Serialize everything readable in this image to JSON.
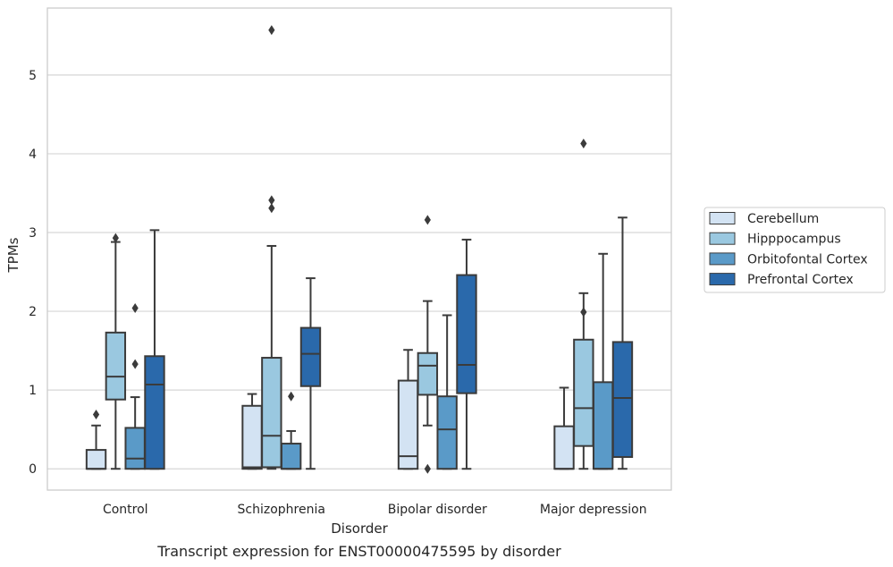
{
  "chart_data": {
    "type": "box",
    "caption": "Transcript expression for ENST00000475595 by disorder",
    "xlabel": "Disorder",
    "ylabel": "TPMs",
    "categories": [
      "Control",
      "Schizophrenia",
      "Bipolar disorder",
      "Major depression"
    ],
    "ylim": [
      -0.27,
      5.85
    ],
    "yticks": [
      0,
      1,
      2,
      3,
      4,
      5
    ],
    "grid": "horizontal",
    "legend_position": "right",
    "series": [
      {
        "name": "Cerebellum",
        "color": "#d3e3f3",
        "boxes": [
          {
            "whisker_low": 0,
            "q1": 0,
            "median": 0,
            "q3": 0.24,
            "whisker_high": 0.55,
            "outliers": [
              0.69
            ]
          },
          {
            "whisker_low": 0,
            "q1": 0,
            "median": 0.02,
            "q3": 0.8,
            "whisker_high": 0.95,
            "outliers": []
          },
          {
            "whisker_low": 0,
            "q1": 0,
            "median": 0.16,
            "q3": 1.12,
            "whisker_high": 1.51,
            "outliers": []
          },
          {
            "whisker_low": 0,
            "q1": 0,
            "median": 0,
            "q3": 0.54,
            "whisker_high": 1.03,
            "outliers": []
          }
        ]
      },
      {
        "name": "Hipppocampus",
        "color": "#9ac8e0",
        "boxes": [
          {
            "whisker_low": 0,
            "q1": 0.88,
            "median": 1.17,
            "q3": 1.73,
            "whisker_high": 2.88,
            "outliers": [
              2.93
            ]
          },
          {
            "whisker_low": 0,
            "q1": 0.02,
            "median": 0.42,
            "q3": 1.41,
            "whisker_high": 2.83,
            "outliers": [
              3.31,
              3.41,
              5.57
            ]
          },
          {
            "whisker_low": 0.55,
            "q1": 0.94,
            "median": 1.31,
            "q3": 1.47,
            "whisker_high": 2.13,
            "outliers": [
              0,
              3.16
            ]
          },
          {
            "whisker_low": 0,
            "q1": 0.29,
            "median": 0.77,
            "q3": 1.64,
            "whisker_high": 2.23,
            "outliers": [
              1.99,
              4.13
            ]
          }
        ]
      },
      {
        "name": "Orbitofontal Cortex",
        "color": "#5a9ac8",
        "boxes": [
          {
            "whisker_low": 0,
            "q1": 0,
            "median": 0.13,
            "q3": 0.52,
            "whisker_high": 0.91,
            "outliers": [
              1.33,
              2.04
            ]
          },
          {
            "whisker_low": 0,
            "q1": 0,
            "median": 0,
            "q3": 0.32,
            "whisker_high": 0.48,
            "outliers": [
              0.92
            ]
          },
          {
            "whisker_low": 0,
            "q1": 0,
            "median": 0.5,
            "q3": 0.92,
            "whisker_high": 1.95,
            "outliers": []
          },
          {
            "whisker_low": 0,
            "q1": 0,
            "median": 0,
            "q3": 1.1,
            "whisker_high": 2.73,
            "outliers": []
          }
        ]
      },
      {
        "name": "Prefrontal Cortex",
        "color": "#2a69ab",
        "boxes": [
          {
            "whisker_low": 0,
            "q1": 0,
            "median": 1.07,
            "q3": 1.43,
            "whisker_high": 3.03,
            "outliers": []
          },
          {
            "whisker_low": 0,
            "q1": 1.05,
            "median": 1.46,
            "q3": 1.79,
            "whisker_high": 2.42,
            "outliers": []
          },
          {
            "whisker_low": 0,
            "q1": 0.96,
            "median": 1.32,
            "q3": 2.46,
            "whisker_high": 2.91,
            "outliers": []
          },
          {
            "whisker_low": 0,
            "q1": 0.15,
            "median": 0.9,
            "q3": 1.61,
            "whisker_high": 3.19,
            "outliers": []
          }
        ]
      }
    ]
  }
}
